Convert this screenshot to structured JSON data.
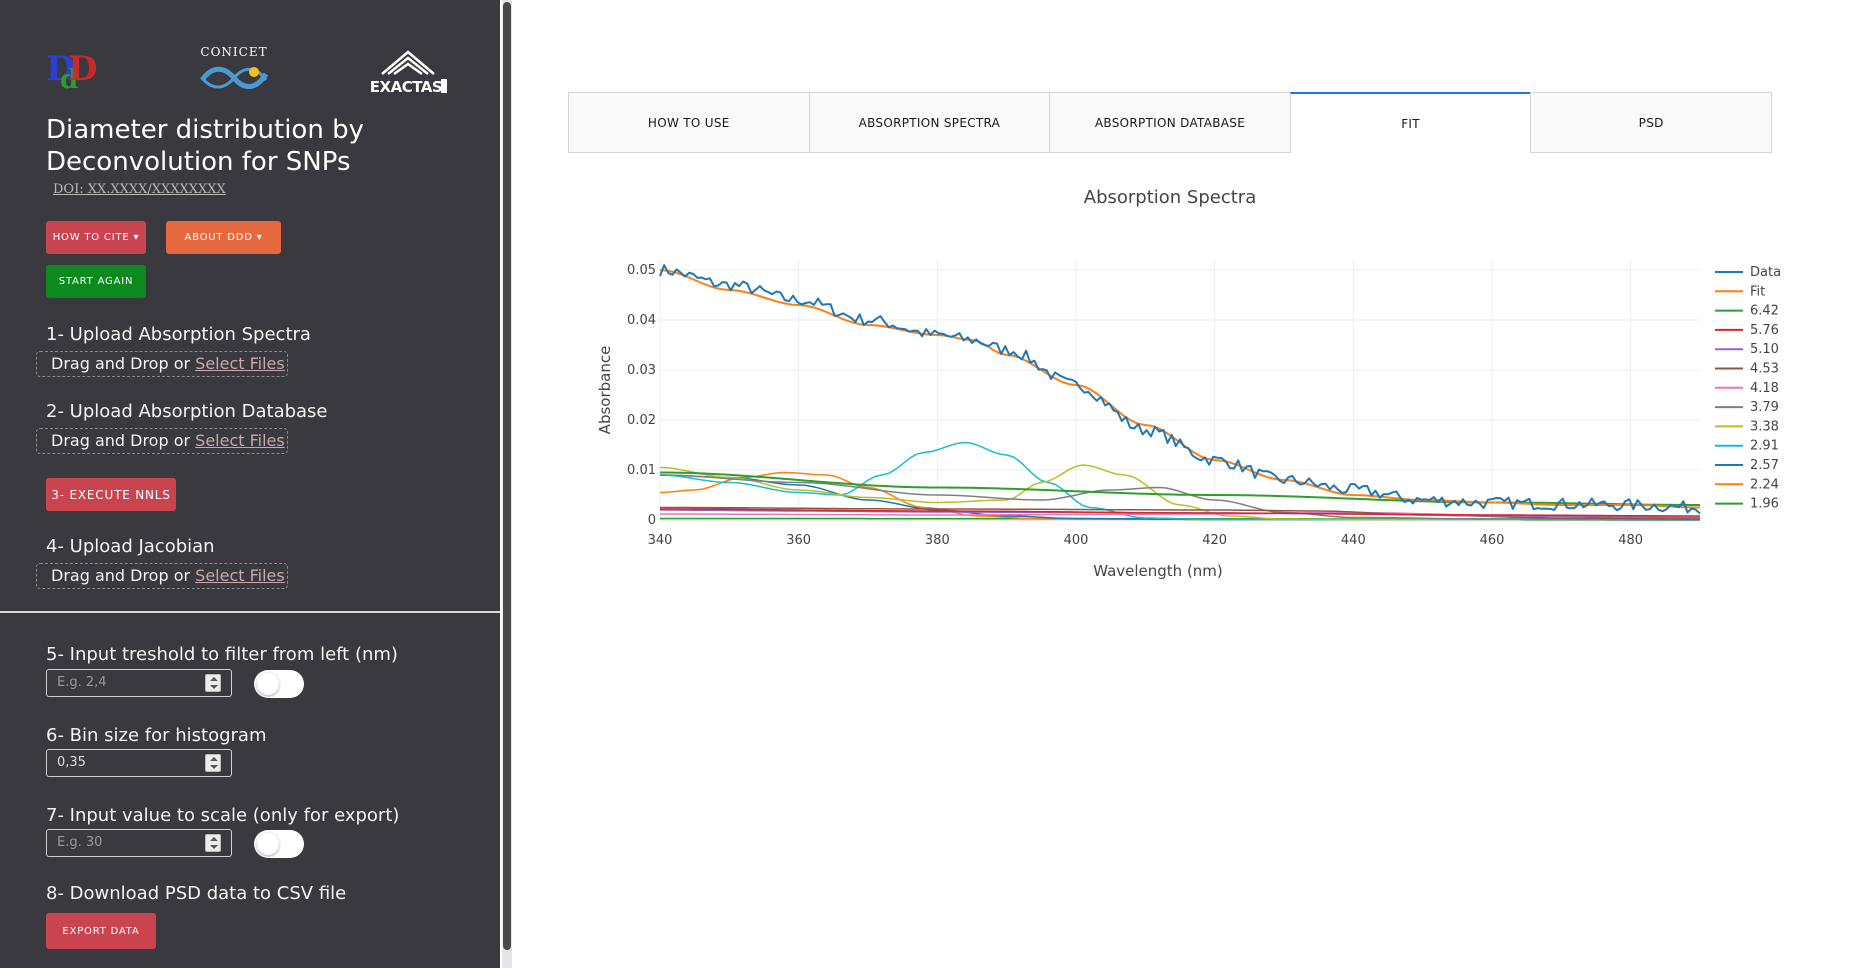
{
  "app": {
    "title": "Diameter distribution by Deconvolution for SNPs",
    "doi": "DOI: XX.XXXX/XXXXXXXX",
    "logos": {
      "ddd": "DdD",
      "conicet": "CONICET",
      "exactas": "EXACTAS"
    }
  },
  "sidebar": {
    "buttons": {
      "how_to_cite": "HOW TO CITE ▾",
      "about": "ABOUT DDD ▾",
      "start_again": "START AGAIN",
      "execute_nnls": "3- EXECUTE NNLS",
      "export_data": "EXPORT DATA"
    },
    "steps": {
      "upload_spectra": "1- Upload Absorption Spectra",
      "upload_database": "2- Upload Absorption Database",
      "upload_jacobian": "4- Upload Jacobian",
      "threshold": "5- Input treshold to filter from left (nm)",
      "bin_size": "6- Bin size for histogram",
      "scale": "7- Input value to scale (only for export)",
      "download": "8- Download PSD data to CSV file"
    },
    "dropzone": {
      "text": "Drag and Drop or ",
      "link": "Select Files"
    },
    "inputs": {
      "threshold_placeholder": "E.g. 2,4",
      "bin_size_value": "0,35",
      "scale_placeholder": "E.g. 30"
    },
    "toggles": {
      "threshold_on": false,
      "scale_on": false
    }
  },
  "tabs": [
    {
      "label": "HOW TO USE",
      "active": false
    },
    {
      "label": "ABSORPTION SPECTRA",
      "active": false
    },
    {
      "label": "ABSORPTION DATABASE",
      "active": false
    },
    {
      "label": "FIT",
      "active": true
    },
    {
      "label": "PSD",
      "active": false
    }
  ],
  "chart_data": {
    "type": "line",
    "title": "Absorption Spectra",
    "xlabel": "Wavelength (nm)",
    "ylabel": "Absorbance",
    "xlim": [
      340,
      490
    ],
    "ylim": [
      0,
      0.05
    ],
    "xticks": [
      340,
      360,
      380,
      400,
      420,
      440,
      460,
      480
    ],
    "yticks": [
      0,
      0.01,
      0.02,
      0.03,
      0.04,
      0.05
    ],
    "ytick_labels": [
      "0",
      "0.01",
      "0.02",
      "0.03",
      "0.04",
      "0.05"
    ],
    "grid": true,
    "legend_position": "right",
    "series": [
      {
        "name": "Data",
        "color": "#1f77b4",
        "width": 2,
        "noise": 0.0012,
        "x": [
          340,
          350,
          360,
          370,
          380,
          385,
          390,
          400,
          410,
          420,
          430,
          440,
          450,
          460,
          470,
          480,
          490
        ],
        "y": [
          0.05,
          0.047,
          0.044,
          0.04,
          0.037,
          0.036,
          0.034,
          0.027,
          0.018,
          0.012,
          0.008,
          0.006,
          0.004,
          0.0034,
          0.0032,
          0.003,
          0.0025
        ]
      },
      {
        "name": "Fit",
        "color": "#ff7f0e",
        "width": 2,
        "x": [
          340,
          350,
          360,
          370,
          380,
          385,
          390,
          400,
          410,
          420,
          430,
          440,
          450,
          460,
          470,
          480,
          490
        ],
        "y": [
          0.05,
          0.046,
          0.043,
          0.039,
          0.037,
          0.036,
          0.033,
          0.027,
          0.019,
          0.012,
          0.008,
          0.005,
          0.004,
          0.0035,
          0.003,
          0.003,
          0.0025
        ]
      },
      {
        "name": "6.42",
        "color": "#2ca02c",
        "width": 2,
        "x": [
          340,
          380,
          420,
          460,
          490
        ],
        "y": [
          0.0095,
          0.0065,
          0.005,
          0.0035,
          0.003
        ]
      },
      {
        "name": "5.76",
        "color": "#d62728",
        "width": 1.5,
        "x": [
          340,
          380,
          420,
          460,
          490
        ],
        "y": [
          0.0022,
          0.0018,
          0.0014,
          0.001,
          0.0008
        ]
      },
      {
        "name": "5.10",
        "color": "#9467bd",
        "width": 1.5,
        "x": [
          340,
          360,
          380,
          400,
          420,
          440,
          460,
          490
        ],
        "y": [
          0.002,
          0.0018,
          0.0016,
          0.0015,
          0.0014,
          0.0012,
          0.0008,
          0.0005
        ]
      },
      {
        "name": "4.53",
        "color": "#8c564b",
        "width": 1.5,
        "x": [
          340,
          380,
          420,
          435,
          450,
          470,
          490
        ],
        "y": [
          0.0025,
          0.0022,
          0.002,
          0.0018,
          0.001,
          0.0004,
          0.0002
        ]
      },
      {
        "name": "4.18",
        "color": "#e377c2",
        "width": 1.5,
        "x": [
          340,
          380,
          420,
          440,
          460,
          490
        ],
        "y": [
          0.0012,
          0.001,
          0.0012,
          0.0015,
          0.001,
          0.0004
        ]
      },
      {
        "name": "3.79",
        "color": "#7f7f7f",
        "width": 1.5,
        "x": [
          340,
          360,
          380,
          395,
          405,
          412,
          420,
          430,
          440,
          460,
          490
        ],
        "y": [
          0.009,
          0.0075,
          0.005,
          0.004,
          0.006,
          0.0065,
          0.004,
          0.0015,
          0.0005,
          0.0002,
          0.0001
        ]
      },
      {
        "name": "3.38",
        "color": "#bcbd22",
        "width": 1.5,
        "x": [
          340,
          350,
          360,
          370,
          380,
          390,
          395,
          401,
          407,
          415,
          422,
          430,
          440,
          490
        ],
        "y": [
          0.0105,
          0.0085,
          0.006,
          0.0045,
          0.0035,
          0.004,
          0.0075,
          0.011,
          0.009,
          0.003,
          0.0008,
          0.0002,
          0.0001,
          0.0001
        ]
      },
      {
        "name": "2.91",
        "color": "#17becf",
        "width": 1.5,
        "x": [
          340,
          350,
          360,
          366,
          372,
          378,
          384,
          390,
          396,
          402,
          410,
          420,
          490
        ],
        "y": [
          0.009,
          0.0075,
          0.0055,
          0.005,
          0.009,
          0.0135,
          0.0155,
          0.013,
          0.0075,
          0.0025,
          0.0004,
          0.0001,
          0.0
        ]
      },
      {
        "name": "2.57",
        "color": "#1f77b4",
        "width": 1.5,
        "x": [
          340,
          350,
          360,
          370,
          380,
          390,
          400,
          420,
          490
        ],
        "y": [
          0.009,
          0.0085,
          0.007,
          0.004,
          0.002,
          0.0008,
          0.0003,
          0.0001,
          0.0
        ]
      },
      {
        "name": "2.24",
        "color": "#ff7f0e",
        "width": 1.5,
        "x": [
          340,
          345,
          352,
          358,
          364,
          370,
          378,
          386,
          395,
          420,
          490
        ],
        "y": [
          0.0055,
          0.006,
          0.0085,
          0.0095,
          0.009,
          0.0065,
          0.0025,
          0.0008,
          0.0002,
          0.0001,
          0.0
        ]
      },
      {
        "name": "1.96",
        "color": "#2ca02c",
        "width": 1.5,
        "x": [
          340,
          490
        ],
        "y": [
          0.0003,
          0.0002
        ]
      }
    ]
  }
}
